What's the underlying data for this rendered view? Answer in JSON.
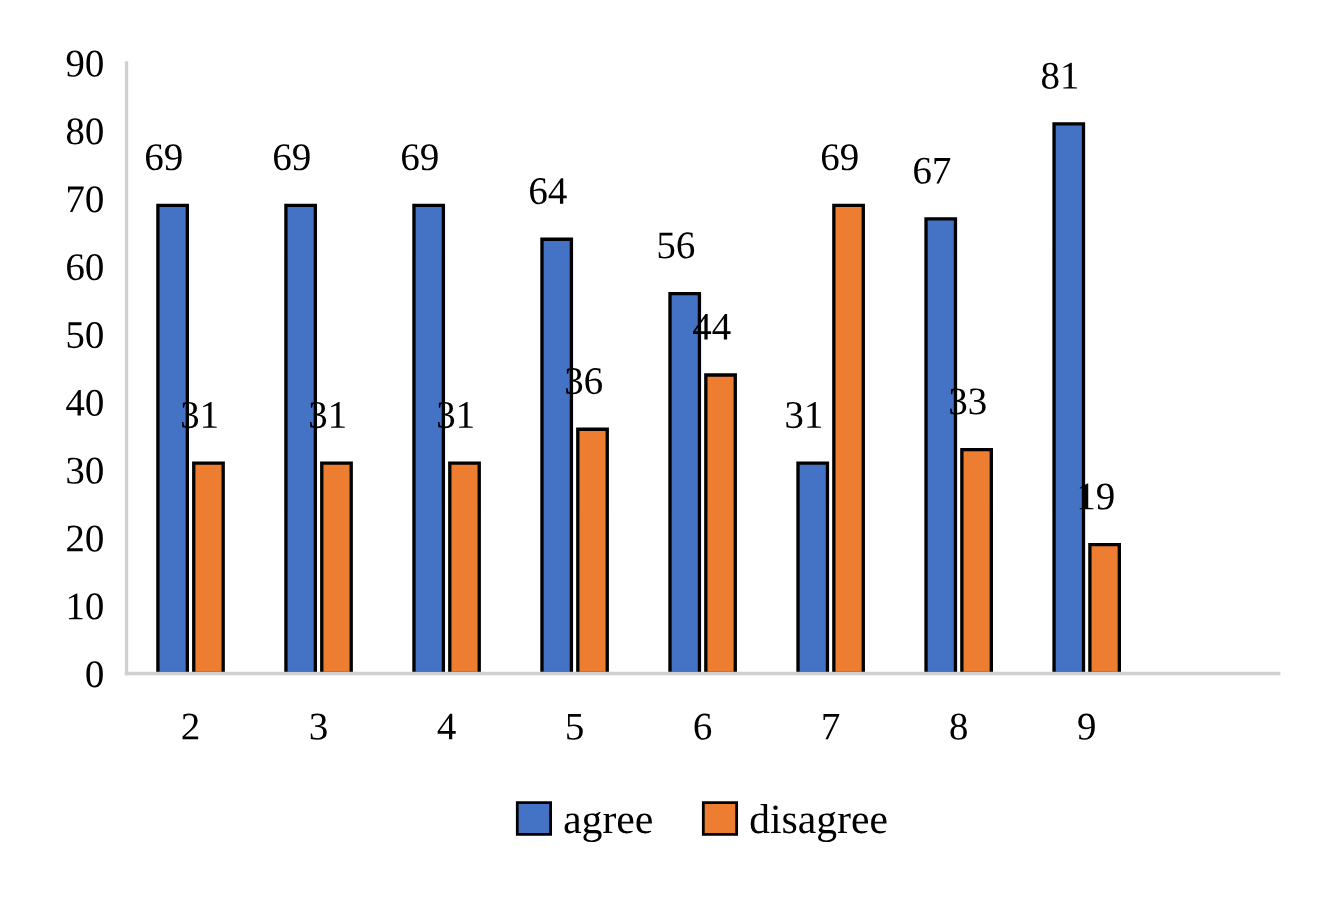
{
  "chart_data": {
    "type": "bar",
    "categories": [
      "2",
      "3",
      "4",
      "5",
      "6",
      "7",
      "8",
      "9",
      null
    ],
    "series": [
      {
        "name": "agree",
        "color": "#4472c4",
        "values": [
          69,
          69,
          69,
          64,
          56,
          31,
          67,
          81,
          null
        ]
      },
      {
        "name": "disagree",
        "color": "#ed7d31",
        "values": [
          31,
          31,
          31,
          36,
          44,
          69,
          33,
          19,
          null
        ]
      }
    ],
    "ylim": [
      0,
      90
    ],
    "yticks": [
      0,
      10,
      20,
      30,
      40,
      50,
      60,
      70,
      80,
      90
    ],
    "grid": false,
    "legend": "bottom",
    "data_labels": true
  }
}
